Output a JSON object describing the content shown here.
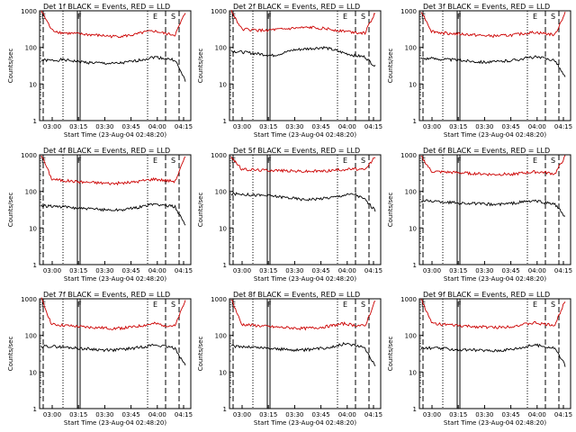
{
  "chart_data": [
    {
      "type": "line",
      "title": "Det 1f  BLACK = Events, RED = LLD",
      "xlabel": "Start Time (23-Aug-04 02:48:20)",
      "ylabel": "Counts/sec",
      "yscale": "log",
      "ylim": [
        1,
        1000
      ],
      "yticks": [
        "1",
        "10",
        "100",
        "1000"
      ],
      "xticks": [
        "03:00",
        "03:15",
        "03:30",
        "03:45",
        "04:00",
        "04:15"
      ],
      "markers": [
        "E",
        "F",
        "E",
        "S"
      ],
      "series": [
        {
          "name": "Events",
          "color": "#000000",
          "values": [
            45,
            44,
            46,
            43,
            40,
            38,
            37,
            36,
            38,
            42,
            48,
            55,
            50,
            45,
            12
          ]
        },
        {
          "name": "LLD",
          "color": "#cc0000",
          "values": [
            1000,
            300,
            250,
            240,
            230,
            220,
            210,
            200,
            205,
            220,
            260,
            280,
            240,
            220,
            900
          ]
        }
      ]
    },
    {
      "type": "line",
      "title": "Det 2f  BLACK = Events, RED = LLD",
      "xlabel": "Start Time (23-Aug-04 02:48:20)",
      "ylabel": "Counts/sec",
      "yscale": "log",
      "ylim": [
        1,
        1000
      ],
      "yticks": [
        "1",
        "10",
        "100",
        "1000"
      ],
      "xticks": [
        "03:00",
        "03:15",
        "03:30",
        "03:45",
        "04:00",
        "04:15"
      ],
      "markers": [
        "E",
        "F",
        "E",
        "S"
      ],
      "series": [
        {
          "name": "Events",
          "color": "#000000",
          "values": [
            80,
            75,
            70,
            65,
            60,
            70,
            85,
            90,
            95,
            100,
            85,
            70,
            60,
            55,
            30
          ]
        },
        {
          "name": "LLD",
          "color": "#cc0000",
          "values": [
            1000,
            320,
            300,
            290,
            300,
            310,
            330,
            340,
            350,
            330,
            300,
            280,
            260,
            250,
            900
          ]
        }
      ]
    },
    {
      "type": "line",
      "title": "Det 3f  BLACK = Events, RED = LLD",
      "xlabel": "Start Time (23-Aug-04 02:48:20)",
      "ylabel": "Counts/sec",
      "yscale": "log",
      "ylim": [
        1,
        1000
      ],
      "yticks": [
        "1",
        "10",
        "100",
        "1000"
      ],
      "xticks": [
        "03:00",
        "03:15",
        "03:30",
        "03:45",
        "04:00",
        "04:15"
      ],
      "markers": [
        "E",
        "F",
        "E",
        "S"
      ],
      "series": [
        {
          "name": "Events",
          "color": "#000000",
          "values": [
            50,
            50,
            48,
            46,
            44,
            42,
            40,
            40,
            42,
            45,
            50,
            55,
            50,
            45,
            15
          ]
        },
        {
          "name": "LLD",
          "color": "#cc0000",
          "values": [
            1000,
            280,
            250,
            240,
            230,
            220,
            210,
            205,
            210,
            220,
            240,
            260,
            240,
            220,
            900
          ]
        }
      ]
    },
    {
      "type": "line",
      "title": "Det 4f  BLACK = Events, RED = LLD",
      "xlabel": "Start Time (23-Aug-04 02:48:20)",
      "ylabel": "Counts/sec",
      "yscale": "log",
      "ylim": [
        1,
        1000
      ],
      "yticks": [
        "1",
        "10",
        "100",
        "1000"
      ],
      "xticks": [
        "03:00",
        "03:15",
        "03:30",
        "03:45",
        "04:00",
        "04:15"
      ],
      "markers": [
        "E",
        "F",
        "E",
        "S"
      ],
      "series": [
        {
          "name": "Events",
          "color": "#000000",
          "values": [
            40,
            40,
            38,
            36,
            34,
            33,
            32,
            31,
            32,
            35,
            40,
            45,
            42,
            38,
            12
          ]
        },
        {
          "name": "LLD",
          "color": "#cc0000",
          "values": [
            1000,
            220,
            200,
            190,
            180,
            175,
            170,
            165,
            170,
            180,
            200,
            220,
            200,
            190,
            900
          ]
        }
      ]
    },
    {
      "type": "line",
      "title": "Det 5f  BLACK = Events, RED = LLD",
      "xlabel": "Start Time (23-Aug-04 02:48:20)",
      "ylabel": "Counts/sec",
      "yscale": "log",
      "ylim": [
        1,
        1000
      ],
      "yticks": [
        "1",
        "10",
        "100",
        "1000"
      ],
      "xticks": [
        "03:00",
        "03:15",
        "03:30",
        "03:45",
        "04:00",
        "04:15"
      ],
      "markers": [
        "E",
        "F",
        "E",
        "S"
      ],
      "series": [
        {
          "name": "Events",
          "color": "#000000",
          "values": [
            85,
            85,
            80,
            78,
            75,
            70,
            65,
            60,
            62,
            65,
            70,
            80,
            85,
            60,
            30
          ]
        },
        {
          "name": "LLD",
          "color": "#cc0000",
          "values": [
            900,
            400,
            390,
            380,
            380,
            370,
            360,
            350,
            355,
            360,
            380,
            400,
            410,
            380,
            900
          ]
        }
      ]
    },
    {
      "type": "line",
      "title": "Det 6f  BLACK = Events, RED = LLD",
      "xlabel": "Start Time (23-Aug-04 02:48:20)",
      "ylabel": "Counts/sec",
      "yscale": "log",
      "ylim": [
        1,
        1000
      ],
      "yticks": [
        "1",
        "10",
        "100",
        "1000"
      ],
      "xticks": [
        "03:00",
        "03:15",
        "03:30",
        "03:45",
        "04:00",
        "04:15"
      ],
      "markers": [
        "E",
        "F",
        "E",
        "S"
      ],
      "series": [
        {
          "name": "Events",
          "color": "#000000",
          "values": [
            55,
            55,
            52,
            50,
            48,
            47,
            45,
            44,
            45,
            48,
            52,
            55,
            50,
            45,
            20
          ]
        },
        {
          "name": "LLD",
          "color": "#cc0000",
          "values": [
            900,
            350,
            340,
            330,
            320,
            310,
            300,
            290,
            295,
            300,
            320,
            340,
            330,
            300,
            900
          ]
        }
      ]
    },
    {
      "type": "line",
      "title": "Det 7f  BLACK = Events, RED = LLD",
      "xlabel": "Start Time (23-Aug-04 02:48:20)",
      "ylabel": "Counts/sec",
      "yscale": "log",
      "ylim": [
        1,
        1000
      ],
      "yticks": [
        "1",
        "10",
        "100",
        "1000"
      ],
      "xticks": [
        "03:00",
        "03:15",
        "03:30",
        "03:45",
        "04:00",
        "04:15"
      ],
      "markers": [
        "E",
        "F",
        "E",
        "S"
      ],
      "series": [
        {
          "name": "Events",
          "color": "#000000",
          "values": [
            50,
            50,
            48,
            46,
            44,
            42,
            40,
            40,
            42,
            45,
            50,
            55,
            50,
            45,
            15
          ]
        },
        {
          "name": "LLD",
          "color": "#cc0000",
          "values": [
            1000,
            200,
            190,
            180,
            170,
            165,
            160,
            155,
            160,
            170,
            190,
            210,
            190,
            180,
            900
          ]
        }
      ]
    },
    {
      "type": "line",
      "title": "Det 8f  BLACK = Events, RED = LLD",
      "xlabel": "Start Time (23-Aug-04 02:48:20)",
      "ylabel": "Counts/sec",
      "yscale": "log",
      "ylim": [
        1,
        1000
      ],
      "yticks": [
        "1",
        "10",
        "100",
        "1000"
      ],
      "xticks": [
        "03:00",
        "03:15",
        "03:30",
        "03:45",
        "04:00",
        "04:15"
      ],
      "markers": [
        "E",
        "F",
        "E",
        "S"
      ],
      "series": [
        {
          "name": "Events",
          "color": "#000000",
          "values": [
            50,
            50,
            48,
            46,
            44,
            42,
            40,
            40,
            42,
            45,
            50,
            60,
            55,
            45,
            15
          ]
        },
        {
          "name": "LLD",
          "color": "#cc0000",
          "values": [
            1000,
            200,
            190,
            180,
            170,
            165,
            160,
            155,
            160,
            170,
            190,
            210,
            190,
            180,
            900
          ]
        }
      ]
    },
    {
      "type": "line",
      "title": "Det 9f  BLACK = Events, RED = LLD",
      "xlabel": "Start Time (23-Aug-04 02:48:20)",
      "ylabel": "Counts/sec",
      "yscale": "log",
      "ylim": [
        1,
        1000
      ],
      "yticks": [
        "1",
        "10",
        "100",
        "1000"
      ],
      "xticks": [
        "03:00",
        "03:15",
        "03:30",
        "03:45",
        "04:00",
        "04:15"
      ],
      "markers": [
        "E",
        "F",
        "E",
        "S"
      ],
      "series": [
        {
          "name": "Events",
          "color": "#000000",
          "values": [
            45,
            45,
            44,
            42,
            40,
            40,
            39,
            38,
            40,
            43,
            48,
            55,
            50,
            45,
            15
          ]
        },
        {
          "name": "LLD",
          "color": "#cc0000",
          "values": [
            1000,
            220,
            200,
            190,
            180,
            175,
            170,
            165,
            170,
            180,
            200,
            220,
            200,
            190,
            900
          ]
        }
      ]
    }
  ]
}
